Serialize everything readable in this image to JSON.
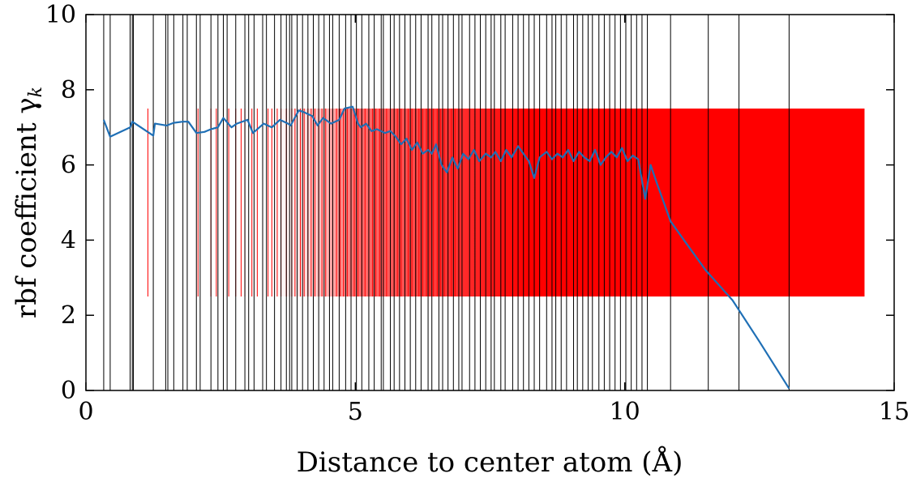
{
  "chart_data": {
    "type": "line",
    "xlabel": "Distance to center atom (Å)",
    "ylabel": "rbf coefficient γ",
    "ylabel_subscript": "k",
    "xlim": [
      0,
      15
    ],
    "ylim": [
      0,
      10
    ],
    "x_ticks": [
      0,
      5,
      10,
      15
    ],
    "y_ticks": [
      0,
      2,
      4,
      6,
      8,
      10
    ],
    "grid": false,
    "colors": {
      "line": "#1f6fb5",
      "band": "#ff0000",
      "marks": "#000000"
    },
    "band": {
      "x_start": 1.15,
      "x_end": 14.45,
      "y_low": 2.5,
      "y_high": 7.5
    },
    "shell_lines_x": [
      0.33,
      0.45,
      0.82,
      0.86,
      0.88,
      1.25,
      1.48,
      1.52,
      1.63,
      1.8,
      1.88,
      2.05,
      2.12,
      2.32,
      2.45,
      2.55,
      2.62,
      2.78,
      2.95,
      3.02,
      3.12,
      3.28,
      3.35,
      3.5,
      3.62,
      3.72,
      3.78,
      3.82,
      3.92,
      4.02,
      4.12,
      4.22,
      4.32,
      4.42,
      4.52,
      4.58,
      4.7,
      4.82,
      4.92,
      5.02,
      5.12,
      5.25,
      5.35,
      5.48,
      5.52,
      5.65,
      5.72,
      5.82,
      5.92,
      6.02,
      6.12,
      6.22,
      6.35,
      6.42,
      6.55,
      6.62,
      6.72,
      6.82,
      6.92,
      6.98,
      7.12,
      7.22,
      7.32,
      7.42,
      7.52,
      7.58,
      7.7,
      7.78,
      7.92,
      8.02,
      8.12,
      8.22,
      8.32,
      8.42,
      8.55,
      8.65,
      8.72,
      8.82,
      8.92,
      9.05,
      9.12,
      9.22,
      9.32,
      9.4,
      9.52,
      9.62,
      9.72,
      9.82,
      9.92,
      10.02,
      10.12,
      10.22,
      10.32,
      10.42,
      10.85,
      11.55,
      12.12,
      13.05
    ],
    "band_lines_x": [
      1.15,
      2.08,
      2.32,
      2.42,
      2.55,
      2.65,
      2.78,
      2.88,
      2.95,
      3.08,
      3.18,
      3.28,
      3.38,
      3.45,
      3.55,
      3.62,
      3.72,
      3.82,
      3.88,
      3.98,
      4.05,
      4.12,
      4.18,
      4.25,
      4.32,
      4.38,
      4.45,
      4.52,
      4.58,
      4.65,
      4.72,
      4.78,
      4.85,
      4.92,
      4.98,
      5.05,
      5.12,
      5.18,
      5.25,
      5.32,
      5.38,
      5.45,
      5.52,
      5.58,
      5.65,
      5.72,
      5.78,
      5.85,
      5.92,
      5.98,
      6.05,
      6.12,
      6.18,
      6.25,
      6.32,
      6.38,
      6.45,
      6.52,
      6.58,
      6.65,
      6.72,
      6.78,
      6.85,
      6.92
    ],
    "series": [
      {
        "x": [
          0.33,
          0.45,
          0.82,
          0.86,
          1.25,
          1.28,
          1.5,
          1.63,
          1.8,
          1.9,
          2.05,
          2.2,
          2.32,
          2.45,
          2.55,
          2.7,
          2.8,
          3.0,
          3.1,
          3.3,
          3.45,
          3.6,
          3.75,
          3.8,
          3.95,
          4.05,
          4.2,
          4.3,
          4.4,
          4.55,
          4.7,
          4.8,
          4.95,
          5.05,
          5.1,
          5.2,
          5.3,
          5.4,
          5.55,
          5.65,
          5.75,
          5.85,
          5.95,
          6.05,
          6.15,
          6.25,
          6.35,
          6.42,
          6.5,
          6.6,
          6.7,
          6.8,
          6.9,
          7.0,
          7.1,
          7.2,
          7.3,
          7.42,
          7.52,
          7.6,
          7.7,
          7.8,
          7.9,
          8.02,
          8.12,
          8.22,
          8.32,
          8.42,
          8.55,
          8.65,
          8.75,
          8.85,
          8.95,
          9.05,
          9.15,
          9.25,
          9.35,
          9.45,
          9.55,
          9.65,
          9.75,
          9.85,
          9.95,
          10.05,
          10.15,
          10.25,
          10.38,
          10.48,
          10.6,
          10.85,
          11.0,
          11.2,
          11.5,
          12.0,
          12.5,
          13.05
        ],
        "y": [
          7.2,
          6.75,
          7.0,
          7.15,
          6.78,
          7.1,
          7.05,
          7.12,
          7.15,
          7.15,
          6.85,
          6.88,
          6.95,
          7.0,
          7.25,
          7.0,
          7.1,
          7.2,
          6.85,
          7.1,
          7.0,
          7.2,
          7.1,
          7.05,
          7.45,
          7.4,
          7.3,
          7.05,
          7.25,
          7.1,
          7.2,
          7.5,
          7.55,
          7.1,
          7.0,
          7.1,
          6.9,
          6.95,
          6.85,
          6.9,
          6.75,
          6.55,
          6.7,
          6.4,
          6.6,
          6.3,
          6.4,
          6.3,
          6.55,
          6.0,
          5.8,
          6.2,
          5.9,
          6.3,
          6.15,
          6.4,
          6.1,
          6.3,
          6.2,
          6.35,
          6.1,
          6.4,
          6.2,
          6.5,
          6.3,
          6.1,
          5.65,
          6.2,
          6.35,
          6.15,
          6.3,
          6.2,
          6.4,
          6.1,
          6.35,
          6.2,
          6.1,
          6.4,
          6.0,
          6.2,
          6.35,
          6.2,
          6.45,
          6.1,
          6.25,
          6.15,
          5.1,
          6.0,
          5.5,
          4.5,
          4.2,
          3.8,
          3.2,
          2.4,
          1.3,
          0.05
        ]
      }
    ]
  }
}
